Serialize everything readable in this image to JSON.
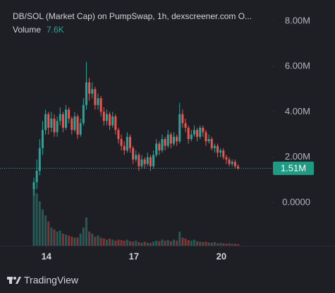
{
  "chart_data": {
    "type": "candlestick",
    "title": "DB/SOL (Market Cap) on PumpSwap, 1h, dexscreener.com  O...",
    "brand": "TradingView",
    "up_color": "#26a69a",
    "down_color": "#ef5350",
    "x": [
      13.57,
      13.67,
      13.77,
      13.87,
      13.97,
      14.07,
      14.17,
      14.27,
      14.37,
      14.47,
      14.57,
      14.67,
      14.77,
      14.87,
      14.97,
      15.07,
      15.17,
      15.27,
      15.37,
      15.47,
      15.57,
      15.67,
      15.77,
      15.87,
      15.97,
      16.07,
      16.17,
      16.27,
      16.37,
      16.47,
      16.57,
      16.67,
      16.77,
      16.87,
      16.97,
      17.07,
      17.17,
      17.27,
      17.37,
      17.47,
      17.57,
      17.67,
      17.77,
      17.87,
      17.97,
      18.07,
      18.17,
      18.27,
      18.37,
      18.47,
      18.57,
      18.67,
      18.77,
      18.87,
      18.97,
      19.07,
      19.17,
      19.27,
      19.37,
      19.47,
      19.57,
      19.67,
      19.77,
      19.87,
      19.97,
      20.07,
      20.17,
      20.27,
      20.37,
      20.47,
      20.57
    ],
    "open": [
      0.6,
      0.9,
      1.4,
      2.4,
      3.2,
      3.9,
      3.3,
      3.7,
      3.1,
      3.6,
      3.9,
      3.3,
      4.1,
      3.7,
      3.2,
      3.8,
      3.0,
      3.5,
      4.3,
      5.3,
      4.8,
      5.0,
      4.3,
      4.6,
      4.0,
      3.6,
      3.9,
      3.4,
      3.8,
      3.2,
      2.8,
      2.5,
      2.3,
      2.9,
      2.4,
      1.9,
      2.1,
      1.6,
      1.9,
      1.7,
      2.0,
      1.6,
      2.1,
      2.6,
      2.3,
      2.8,
      2.5,
      3.0,
      2.6,
      2.9,
      2.7,
      3.9,
      3.5,
      3.3,
      2.8,
      3.0,
      3.2,
      2.9,
      3.3,
      3.1,
      2.7,
      2.8,
      2.4,
      2.5,
      2.2,
      2.3,
      2.0,
      1.9,
      1.7,
      1.8,
      1.6
    ],
    "high": [
      1.1,
      1.9,
      2.8,
      3.6,
      4.1,
      4.0,
      4.0,
      3.9,
      3.8,
      4.2,
      4.0,
      4.3,
      4.2,
      3.8,
      4.0,
      3.9,
      3.7,
      4.6,
      6.2,
      5.5,
      5.3,
      5.1,
      4.8,
      4.7,
      4.2,
      4.1,
      4.0,
      4.0,
      3.9,
      3.3,
      3.0,
      2.7,
      3.1,
      3.0,
      2.5,
      2.3,
      2.2,
      2.1,
      2.0,
      2.2,
      2.1,
      2.3,
      2.8,
      2.7,
      3.0,
      2.9,
      3.2,
      3.1,
      3.1,
      3.0,
      4.4,
      4.1,
      3.7,
      3.4,
      3.2,
      3.4,
      3.3,
      3.4,
      3.4,
      3.2,
      3.0,
      2.9,
      2.6,
      2.6,
      2.4,
      2.4,
      2.1,
      2.0,
      1.9,
      1.9,
      1.7
    ],
    "low": [
      0.3,
      0.6,
      1.2,
      2.1,
      3.0,
      3.0,
      3.1,
      2.9,
      2.9,
      3.4,
      3.1,
      3.2,
      3.5,
      3.0,
      3.1,
      2.8,
      2.9,
      3.4,
      4.1,
      4.5,
      4.6,
      4.1,
      4.1,
      3.8,
      3.4,
      3.4,
      3.2,
      3.3,
      3.0,
      2.6,
      2.3,
      2.1,
      2.2,
      2.2,
      1.7,
      1.8,
      1.4,
      1.5,
      1.5,
      1.6,
      1.4,
      1.5,
      2.0,
      2.1,
      2.2,
      2.3,
      2.4,
      2.4,
      2.5,
      2.5,
      2.6,
      3.3,
      3.1,
      2.6,
      2.7,
      2.9,
      2.7,
      2.8,
      2.9,
      2.5,
      2.6,
      2.3,
      2.2,
      2.0,
      2.0,
      1.9,
      1.7,
      1.6,
      1.6,
      1.5,
      1.45
    ],
    "close": [
      0.9,
      1.4,
      2.4,
      3.2,
      3.9,
      3.3,
      3.7,
      3.1,
      3.6,
      3.9,
      3.3,
      4.1,
      3.7,
      3.2,
      3.8,
      3.0,
      3.5,
      4.3,
      5.3,
      4.8,
      5.0,
      4.3,
      4.6,
      4.0,
      3.6,
      3.9,
      3.4,
      3.8,
      3.2,
      2.8,
      2.5,
      2.3,
      2.9,
      2.4,
      1.9,
      2.1,
      1.6,
      1.9,
      1.7,
      2.0,
      1.6,
      2.1,
      2.6,
      2.3,
      2.8,
      2.5,
      3.0,
      2.6,
      2.9,
      2.7,
      3.9,
      3.5,
      3.3,
      2.8,
      3.0,
      3.2,
      2.9,
      3.3,
      3.1,
      2.7,
      2.8,
      2.4,
      2.5,
      2.2,
      2.3,
      2.0,
      1.9,
      1.7,
      1.8,
      1.6,
      1.51
    ],
    "volume": {
      "name": "Volume",
      "last_value_label": "7.6K",
      "lim": [
        0,
        350
      ],
      "values": [
        300,
        260,
        220,
        180,
        150,
        120,
        90,
        80,
        70,
        75,
        60,
        55,
        50,
        45,
        40,
        40,
        60,
        90,
        140,
        70,
        60,
        45,
        50,
        40,
        35,
        30,
        35,
        30,
        25,
        30,
        28,
        25,
        30,
        22,
        20,
        25,
        18,
        15,
        20,
        15,
        14,
        20,
        25,
        22,
        30,
        25,
        28,
        22,
        30,
        25,
        70,
        40,
        35,
        28,
        25,
        30,
        22,
        20,
        18,
        20,
        16,
        15,
        18,
        12,
        14,
        12,
        10,
        12,
        9,
        10,
        7.6
      ]
    },
    "last_price": {
      "value": 1.51,
      "label": "1.51M"
    },
    "xlim": [
      12.65,
      21.72
    ],
    "xticks": [
      14,
      17,
      20
    ],
    "ylim": [
      -1.9,
      8.93
    ],
    "yticks": [
      {
        "value": 0,
        "label": "0.0000"
      },
      {
        "value": 2,
        "label": "2.00M"
      },
      {
        "value": 4,
        "label": "4.00M"
      },
      {
        "value": 6,
        "label": "6.00M"
      },
      {
        "value": 8,
        "label": "8.00M"
      }
    ],
    "grid": false
  }
}
